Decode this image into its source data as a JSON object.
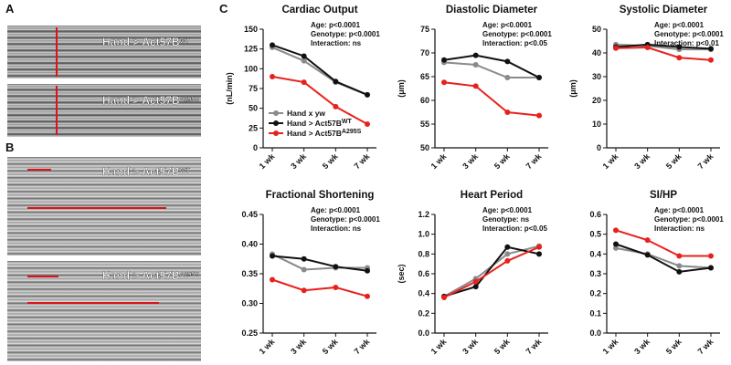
{
  "panels": {
    "a": "A",
    "b": "B",
    "c": "C"
  },
  "images": [
    {
      "label": "Hand > Act57B",
      "sup": "WT"
    },
    {
      "label": "Hand > Act57B",
      "sup": "A295S"
    },
    {
      "label": "Hand > Act57B",
      "sup": "WT"
    },
    {
      "label": "Hand > Act57B",
      "sup": "A295S"
    }
  ],
  "chart_data": [
    {
      "type": "line",
      "title": "Cardiac Output",
      "ylabel": "(nL/min)",
      "categories": [
        "1 wk",
        "3 wk",
        "5 wk",
        "7 wk"
      ],
      "ylim": [
        0,
        150
      ],
      "yticks": [
        0,
        25,
        50,
        75,
        100,
        125,
        150
      ],
      "annotations": [
        "Age: p<0.0001",
        "Genotype: p<0.0001",
        "Interaction: ns"
      ],
      "legend": true,
      "series": [
        {
          "name": "Hand x yw",
          "color": "#8a8a8a",
          "values": [
            127,
            110,
            83,
            67
          ]
        },
        {
          "name": "Hand > Act57B",
          "sup": "WT",
          "color": "#111111",
          "values": [
            130,
            116,
            84,
            67
          ]
        },
        {
          "name": "Hand > Act57B",
          "sup": "A295S",
          "color": "#e8211d",
          "values": [
            90,
            83,
            52,
            30
          ]
        }
      ]
    },
    {
      "type": "line",
      "title": "Diastolic Diameter",
      "ylabel": "(μm)",
      "categories": [
        "1 wk",
        "3 wk",
        "5 wk",
        "7 wk"
      ],
      "ylim": [
        50,
        75
      ],
      "yticks": [
        50,
        55,
        60,
        65,
        70,
        75
      ],
      "annotations": [
        "Age: p<0.0001",
        "Genotype: p<0.0001",
        "Interaction: p<0.05"
      ],
      "series": [
        {
          "color": "#8a8a8a",
          "values": [
            68,
            67.5,
            64.8,
            64.8
          ]
        },
        {
          "color": "#111111",
          "values": [
            68.5,
            69.5,
            68.2,
            64.8
          ]
        },
        {
          "color": "#e8211d",
          "values": [
            63.8,
            63,
            57.5,
            56.8
          ]
        }
      ]
    },
    {
      "type": "line",
      "title": "Systolic Diameter",
      "ylabel": "(μm)",
      "categories": [
        "1 wk",
        "3 wk",
        "5 wk",
        "7 wk"
      ],
      "ylim": [
        0,
        50
      ],
      "yticks": [
        0,
        10,
        20,
        30,
        40,
        50
      ],
      "annotations": [
        "Age: p<0.0001",
        "Genotype: p<0.0001",
        "Interaction: p<0.01"
      ],
      "series": [
        {
          "color": "#8a8a8a",
          "values": [
            43.5,
            43,
            41.5,
            41.5
          ]
        },
        {
          "color": "#111111",
          "values": [
            42.5,
            43.5,
            42.5,
            41.8
          ]
        },
        {
          "color": "#e8211d",
          "values": [
            42,
            42.3,
            38,
            37
          ]
        }
      ]
    },
    {
      "type": "line",
      "title": "Fractional Shortening",
      "categories": [
        "1 wk",
        "3 wk",
        "5 wk",
        "7 wk"
      ],
      "ylim": [
        0.25,
        0.45
      ],
      "yticks": [
        0.25,
        {
          "value": 0.3,
          "label": "0.30"
        },
        0.35,
        {
          "value": 0.4,
          "label": "0.40"
        },
        0.45
      ],
      "annotations": [
        "Age: p<0.0001",
        "Genotype: p<0.0001",
        "Interaction: ns"
      ],
      "series": [
        {
          "color": "#8a8a8a",
          "values": [
            0.383,
            0.357,
            0.36,
            0.36
          ]
        },
        {
          "color": "#111111",
          "values": [
            0.38,
            0.375,
            0.362,
            0.355
          ]
        },
        {
          "color": "#e8211d",
          "values": [
            0.34,
            0.322,
            0.327,
            0.312
          ]
        }
      ]
    },
    {
      "type": "line",
      "title": "Heart Period",
      "ylabel": "(sec)",
      "categories": [
        "1 wk",
        "3 wk",
        "5 wk",
        "7 wk"
      ],
      "ylim": [
        0,
        1.2
      ],
      "yticks": [
        {
          "value": 0,
          "label": "0.0"
        },
        0.2,
        0.4,
        0.6,
        0.8,
        {
          "value": 1,
          "label": "1.0"
        },
        1.2
      ],
      "annotations": [
        "Age: p<0.0001",
        "Genotype: ns",
        "Interaction: p<0.05"
      ],
      "series": [
        {
          "color": "#8a8a8a",
          "values": [
            0.37,
            0.55,
            0.8,
            0.88
          ]
        },
        {
          "color": "#111111",
          "values": [
            0.37,
            0.47,
            0.87,
            0.8
          ]
        },
        {
          "color": "#e8211d",
          "values": [
            0.36,
            0.52,
            0.73,
            0.87
          ]
        }
      ]
    },
    {
      "type": "line",
      "title": "SI/HP",
      "categories": [
        "1 wk",
        "3 wk",
        "5 wk",
        "7 wk"
      ],
      "ylim": [
        0,
        0.6
      ],
      "yticks": [
        {
          "value": 0,
          "label": "0.0"
        },
        0.1,
        0.2,
        0.3,
        0.4,
        0.5,
        0.6
      ],
      "annotations": [
        "Age: p<0.0001",
        "Genotype: p<0.0001",
        "Interaction: ns"
      ],
      "series": [
        {
          "color": "#8a8a8a",
          "values": [
            0.43,
            0.4,
            0.34,
            0.33
          ]
        },
        {
          "color": "#111111",
          "values": [
            0.45,
            0.395,
            0.31,
            0.33
          ]
        },
        {
          "color": "#e8211d",
          "values": [
            0.52,
            0.47,
            0.39,
            0.39
          ]
        }
      ]
    }
  ]
}
